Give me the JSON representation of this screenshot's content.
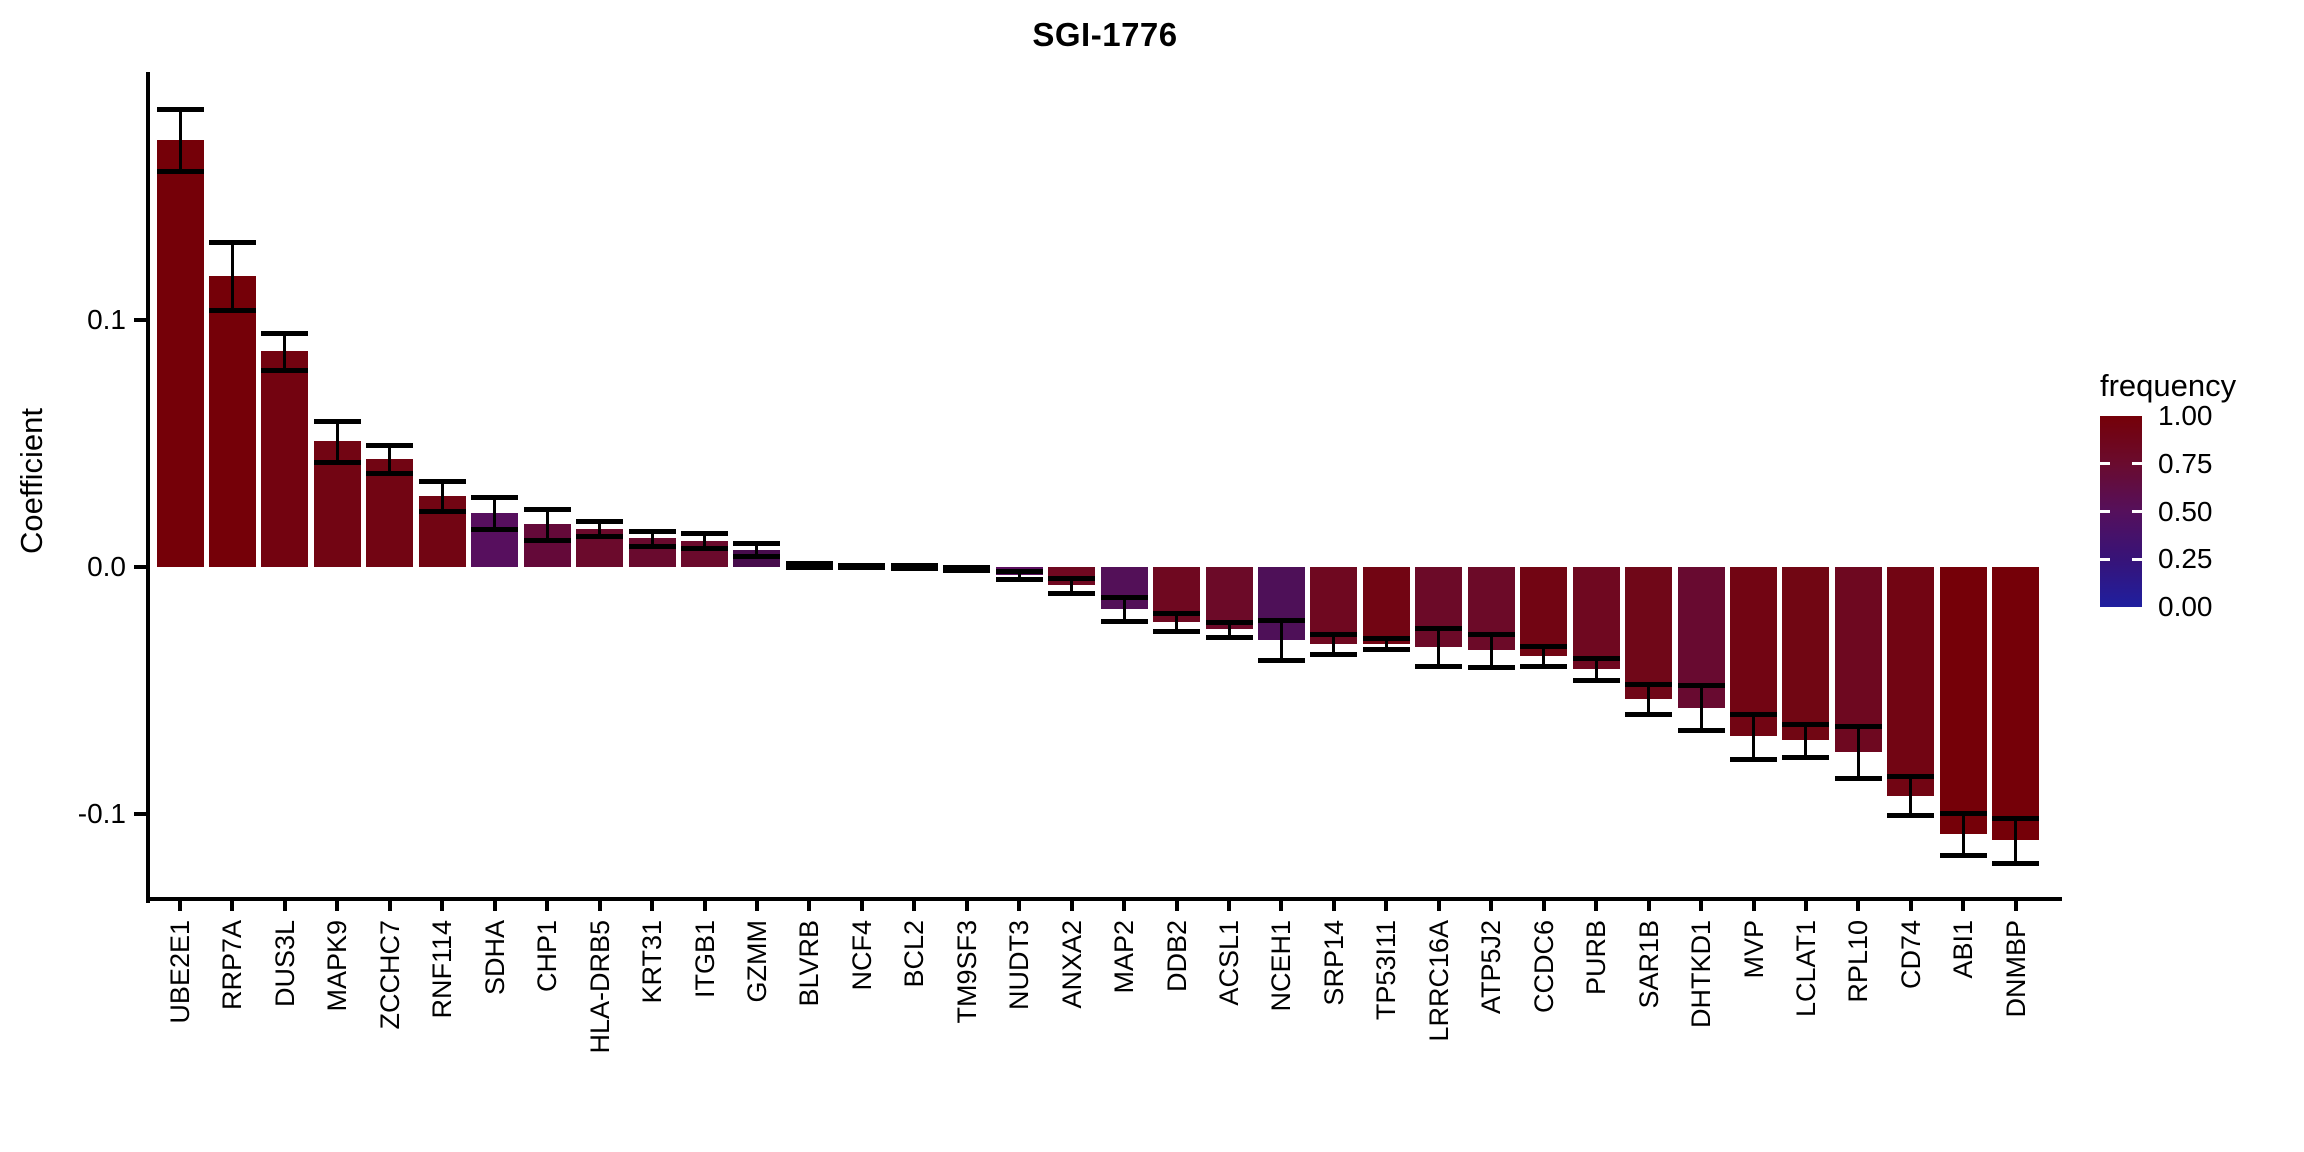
{
  "chart_data": {
    "type": "bar",
    "title": "SGI-1776",
    "xlabel": "",
    "ylabel": "Coefficient",
    "ylim": [
      -0.134,
      0.199
    ],
    "grid": false,
    "y_ticks": [
      {
        "value": 0.1,
        "label": "0.1"
      },
      {
        "value": 0.0,
        "label": "0.0"
      },
      {
        "value": -0.1,
        "label": "-0.1"
      }
    ],
    "legend": {
      "title": "frequency",
      "position": "right",
      "ticks": [
        {
          "value": 1.0,
          "label": "1.00"
        },
        {
          "value": 0.75,
          "label": "0.75"
        },
        {
          "value": 0.5,
          "label": "0.50"
        },
        {
          "value": 0.25,
          "label": "0.25"
        },
        {
          "value": 0.0,
          "label": "0.00"
        }
      ],
      "gradient_stops": [
        {
          "value": 1.0,
          "color": "#750008"
        },
        {
          "value": 0.75,
          "color": "#6a0b2e"
        },
        {
          "value": 0.5,
          "color": "#55105c"
        },
        {
          "value": 0.25,
          "color": "#371378"
        },
        {
          "value": 0.0,
          "color": "#1f1f9f"
        }
      ]
    },
    "bars": [
      {
        "gene": "UBE2E1",
        "coefficient": 0.1725,
        "error": 0.0126,
        "frequency": 1.0,
        "color": "#750008"
      },
      {
        "gene": "RRP7A",
        "coefficient": 0.1175,
        "error": 0.0137,
        "frequency": 1.0,
        "color": "#750008"
      },
      {
        "gene": "DUS3L",
        "coefficient": 0.0872,
        "error": 0.0075,
        "frequency": 0.97,
        "color": "#730310"
      },
      {
        "gene": "MAPK9",
        "coefficient": 0.0508,
        "error": 0.0082,
        "frequency": 0.95,
        "color": "#720513"
      },
      {
        "gene": "ZCCHC7",
        "coefficient": 0.0435,
        "error": 0.0057,
        "frequency": 0.95,
        "color": "#720513"
      },
      {
        "gene": "RNF114",
        "coefficient": 0.0287,
        "error": 0.006,
        "frequency": 0.95,
        "color": "#720513"
      },
      {
        "gene": "SDHA",
        "coefficient": 0.0217,
        "error": 0.0064,
        "frequency": 0.55,
        "color": "#570f5e"
      },
      {
        "gene": "CHP1",
        "coefficient": 0.0172,
        "error": 0.0063,
        "frequency": 0.8,
        "color": "#640939"
      },
      {
        "gene": "HLA-DRB5",
        "coefficient": 0.0155,
        "error": 0.0031,
        "frequency": 0.85,
        "color": "#6b0a2c"
      },
      {
        "gene": "KRT31",
        "coefficient": 0.0116,
        "error": 0.0031,
        "frequency": 0.85,
        "color": "#690a2e"
      },
      {
        "gene": "ITGB1",
        "coefficient": 0.0106,
        "error": 0.003,
        "frequency": 0.85,
        "color": "#6b0a2c"
      },
      {
        "gene": "GZMM",
        "coefficient": 0.007,
        "error": 0.0026,
        "frequency": 0.6,
        "color": "#470c4c"
      },
      {
        "gene": "BLVRB",
        "coefficient": 0.0008,
        "error": 0.0008,
        "frequency": 1.0,
        "color": "#750008"
      },
      {
        "gene": "NCF4",
        "coefficient": 0.0004,
        "error": 0.0006,
        "frequency": 1.0,
        "color": "#750008"
      },
      {
        "gene": "BCL2",
        "coefficient": 0.0002,
        "error": 0.0006,
        "frequency": 1.0,
        "color": "#750008"
      },
      {
        "gene": "TM9SF3",
        "coefficient": -0.0006,
        "error": 0.0007,
        "frequency": 1.0,
        "color": "#750008"
      },
      {
        "gene": "NUDT3",
        "coefficient": -0.0032,
        "error": 0.0016,
        "frequency": 0.6,
        "color": "#5c1060"
      },
      {
        "gene": "ANXA2",
        "coefficient": -0.0074,
        "error": 0.003,
        "frequency": 0.9,
        "color": "#6f0820"
      },
      {
        "gene": "MAP2",
        "coefficient": -0.0171,
        "error": 0.0048,
        "frequency": 0.55,
        "color": "#531058"
      },
      {
        "gene": "DDB2",
        "coefficient": -0.0221,
        "error": 0.0036,
        "frequency": 0.9,
        "color": "#6f0820"
      },
      {
        "gene": "ACSL1",
        "coefficient": -0.0252,
        "error": 0.0031,
        "frequency": 0.85,
        "color": "#6c0a28"
      },
      {
        "gene": "NCEH1",
        "coefficient": -0.0295,
        "error": 0.008,
        "frequency": 0.5,
        "color": "#4e1058"
      },
      {
        "gene": "SRP14",
        "coefficient": -0.0312,
        "error": 0.004,
        "frequency": 0.9,
        "color": "#6f0820"
      },
      {
        "gene": "TP53I11",
        "coefficient": -0.031,
        "error": 0.0021,
        "frequency": 0.95,
        "color": "#720513"
      },
      {
        "gene": "LRRC16A",
        "coefficient": -0.0323,
        "error": 0.0078,
        "frequency": 0.85,
        "color": "#6c0a28"
      },
      {
        "gene": "ATP5J2",
        "coefficient": -0.0337,
        "error": 0.0068,
        "frequency": 0.85,
        "color": "#6c0a28"
      },
      {
        "gene": "CCDC6",
        "coefficient": -0.0361,
        "error": 0.004,
        "frequency": 0.95,
        "color": "#720513"
      },
      {
        "gene": "PURB",
        "coefficient": -0.0411,
        "error": 0.0045,
        "frequency": 0.9,
        "color": "#6f0820"
      },
      {
        "gene": "SAR1B",
        "coefficient": -0.0533,
        "error": 0.006,
        "frequency": 0.9,
        "color": "#700718"
      },
      {
        "gene": "DHTKD1",
        "coefficient": -0.0569,
        "error": 0.0091,
        "frequency": 0.8,
        "color": "#680a30"
      },
      {
        "gene": "MVP",
        "coefficient": -0.0684,
        "error": 0.0091,
        "frequency": 0.95,
        "color": "#720513"
      },
      {
        "gene": "LCLAT1",
        "coefficient": -0.07,
        "error": 0.0067,
        "frequency": 0.95,
        "color": "#710613"
      },
      {
        "gene": "RPL10",
        "coefficient": -0.0746,
        "error": 0.0105,
        "frequency": 0.9,
        "color": "#6e0820"
      },
      {
        "gene": "CD74",
        "coefficient": -0.0925,
        "error": 0.0079,
        "frequency": 0.95,
        "color": "#720513"
      },
      {
        "gene": "ABI1",
        "coefficient": -0.1079,
        "error": 0.0084,
        "frequency": 1.0,
        "color": "#750008"
      },
      {
        "gene": "DNMBP",
        "coefficient": -0.1105,
        "error": 0.0091,
        "frequency": 1.0,
        "color": "#750008"
      }
    ]
  }
}
